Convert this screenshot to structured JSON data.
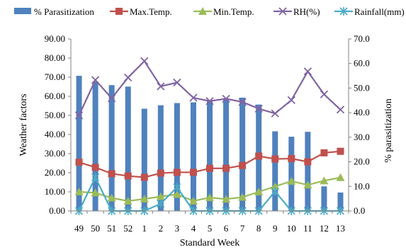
{
  "chart_data": {
    "type": "bar",
    "xlabel": "Standard Week",
    "ylabel_left": "Weather factors",
    "ylabel_right": "% parasitization",
    "left_ylim": [
      0,
      90
    ],
    "left_ticks": [
      "0.00",
      "10.00",
      "20.00",
      "30.00",
      "40.00",
      "50.00",
      "60.00",
      "70.00",
      "80.00",
      "90.00"
    ],
    "right_ylim": [
      0,
      70
    ],
    "right_ticks": [
      "0.0",
      "10.0",
      "20.0",
      "30.0",
      "40.0",
      "50.0",
      "60.0",
      "70.0"
    ],
    "grid": false,
    "legend_position": "top",
    "categories": [
      "49",
      "50",
      "51",
      "52",
      "1",
      "2",
      "3",
      "4",
      "5",
      "6",
      "7",
      "8",
      "9",
      "10",
      "11",
      "12",
      "13"
    ],
    "series": [
      {
        "name": "% Parasitization",
        "kind": "bar",
        "axis": "right",
        "color": "#4f81bd",
        "values": [
          55.0,
          52.5,
          51.2,
          50.6,
          41.6,
          43.0,
          43.9,
          44.2,
          45.1,
          45.8,
          46.1,
          43.3,
          32.4,
          30.2,
          32.2,
          10.0,
          7.5
        ]
      },
      {
        "name": "Max.Temp.",
        "kind": "line",
        "axis": "left",
        "marker": "square",
        "color": "#c0504d",
        "values": [
          25.5,
          22.8,
          19.5,
          18.3,
          17.6,
          19.8,
          20.2,
          20.2,
          22.3,
          22.3,
          23.8,
          28.7,
          27.2,
          27.4,
          25.7,
          30.4,
          31.2
        ]
      },
      {
        "name": "Min.Temp.",
        "kind": "line",
        "axis": "left",
        "marker": "triangle",
        "color": "#9bbb59",
        "values": [
          10.0,
          9.5,
          6.8,
          5.2,
          6.3,
          7.5,
          8.7,
          5.2,
          7.0,
          6.2,
          7.2,
          10.0,
          12.8,
          15.6,
          13.6,
          15.8,
          17.5
        ]
      },
      {
        "name": "RH(%)",
        "kind": "line",
        "axis": "left",
        "marker": "x",
        "color": "#8064a2",
        "values": [
          50.0,
          68.5,
          59.0,
          69.8,
          78.4,
          65.2,
          67.2,
          59.2,
          57.5,
          58.7,
          57.0,
          53.5,
          51.0,
          58.0,
          73.0,
          61.0,
          53.0
        ]
      },
      {
        "name": "Rainfall(mm)",
        "kind": "line",
        "axis": "left",
        "marker": "asterisk",
        "color": "#4bacc6",
        "values": [
          0.0,
          17.6,
          0.0,
          0.0,
          0.0,
          3.8,
          12.4,
          0.0,
          0.0,
          0.0,
          0.0,
          0.0,
          10.2,
          0.0,
          0.0,
          0.0,
          0.0
        ]
      }
    ]
  }
}
